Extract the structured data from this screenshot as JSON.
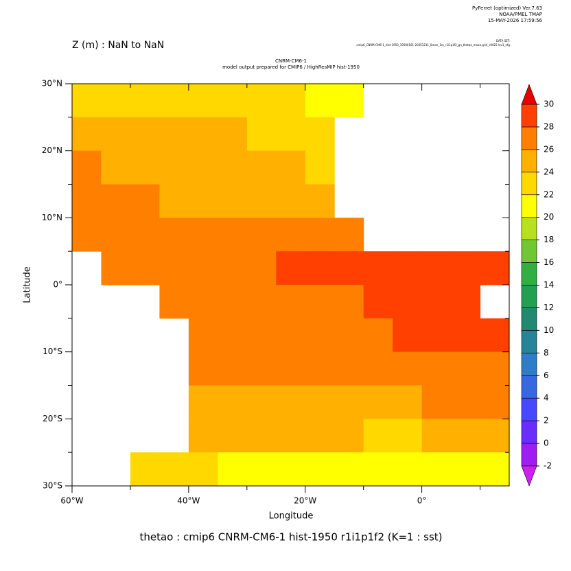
{
  "chart_data": {
    "type": "heatmap",
    "header_left": "Z (m) : NaN to NaN",
    "title": "CNRM-CM6-1",
    "subtitle": "model output prepared for CMIP6 / HighResMIP hist-1950",
    "credits": [
      "PyFerret (optimized) Ver.7.63",
      "NOAA/PMEL TMAP",
      "15-MAY-2026 17:59:56"
    ],
    "dataset_label": "DATA SET:",
    "dataset": "cmip6_CNRM-CM6-1_hist-1950_19500101-20351231_0mon_1m_r1i1p1f2_gn_thetao_mean.grid_c0025-lev1_nfg",
    "caption": "thetao : cmip6 CNRM-CM6-1 hist-1950 r1i1p1f2   (K=1 : sst)",
    "x_label": "Longitude",
    "y_label": "Latitude",
    "x": [
      -57.5,
      -52.5,
      -47.5,
      -42.5,
      -37.5,
      -32.5,
      -27.5,
      -22.5,
      -17.5,
      -12.5,
      -7.5,
      -2.5,
      2.5,
      7.5,
      12.5
    ],
    "y": [
      27.5,
      22.5,
      17.5,
      12.5,
      7.5,
      2.5,
      -2.5,
      -7.5,
      -12.5,
      -17.5,
      -22.5,
      -27.5
    ],
    "z": [
      [
        23,
        23,
        23,
        23,
        23,
        23,
        22,
        22,
        21,
        21,
        null,
        null,
        null,
        null,
        null
      ],
      [
        25,
        25,
        24,
        24,
        24,
        24,
        23,
        23,
        22,
        null,
        null,
        null,
        null,
        null,
        null
      ],
      [
        26,
        25,
        25,
        25,
        25,
        24,
        24,
        24,
        23,
        null,
        null,
        null,
        null,
        null,
        null
      ],
      [
        27,
        26,
        26,
        25,
        25,
        25,
        25,
        24,
        24,
        null,
        null,
        null,
        null,
        null,
        null
      ],
      [
        27,
        27,
        27,
        26,
        26,
        26,
        26,
        26,
        26,
        27,
        null,
        null,
        null,
        null,
        null
      ],
      [
        null,
        27,
        27,
        27,
        27,
        27,
        27,
        28,
        28,
        28,
        28,
        28,
        28,
        28,
        28
      ],
      [
        null,
        null,
        null,
        27,
        27,
        27,
        27,
        27,
        27,
        27,
        28,
        28,
        28,
        28,
        null
      ],
      [
        null,
        null,
        null,
        null,
        27,
        27,
        27,
        27,
        27,
        27,
        27,
        28,
        28,
        28,
        28
      ],
      [
        null,
        null,
        null,
        null,
        26,
        26,
        26,
        26,
        26,
        26,
        26,
        27,
        27,
        27,
        27
      ],
      [
        null,
        null,
        null,
        null,
        25,
        25,
        25,
        25,
        25,
        25,
        25,
        25,
        26,
        26,
        26
      ],
      [
        null,
        null,
        null,
        null,
        24,
        24,
        24,
        24,
        24,
        24,
        23,
        23,
        24,
        24,
        24
      ],
      [
        null,
        null,
        22,
        22,
        22,
        21,
        21,
        21,
        21,
        21,
        21,
        21,
        21,
        21,
        21
      ]
    ],
    "xlim": [
      -60,
      15
    ],
    "ylim": [
      -30,
      30
    ],
    "xticks": [
      {
        "value": -60,
        "label": "60°W"
      },
      {
        "value": -40,
        "label": "40°W"
      },
      {
        "value": -20,
        "label": "20°W"
      },
      {
        "value": 0,
        "label": "0°"
      }
    ],
    "xminor": [
      -50,
      -30,
      -10,
      10
    ],
    "yticks": [
      {
        "value": 30,
        "label": "30°N"
      },
      {
        "value": 20,
        "label": "20°N"
      },
      {
        "value": 10,
        "label": "10°N"
      },
      {
        "value": 0,
        "label": "0°"
      },
      {
        "value": -10,
        "label": "10°S"
      },
      {
        "value": -20,
        "label": "20°S"
      },
      {
        "value": -30,
        "label": "30°S"
      }
    ],
    "yminor": [
      25,
      15,
      5,
      -5,
      -15,
      -25
    ],
    "colorbar": {
      "levels": [
        -2,
        0,
        2,
        4,
        6,
        8,
        10,
        12,
        14,
        16,
        18,
        20,
        22,
        24,
        26,
        28,
        30
      ],
      "colors": [
        "#a01cf0",
        "#6a2cff",
        "#4848ff",
        "#3868e0",
        "#2c7ec8",
        "#23849a",
        "#208a70",
        "#20a050",
        "#30b040",
        "#70c830",
        "#b8e020",
        "#ffff00",
        "#ffd800",
        "#ffb000",
        "#ff8000",
        "#ff4000"
      ],
      "under_color": "#d020f0",
      "over_color": "#e80000"
    }
  }
}
